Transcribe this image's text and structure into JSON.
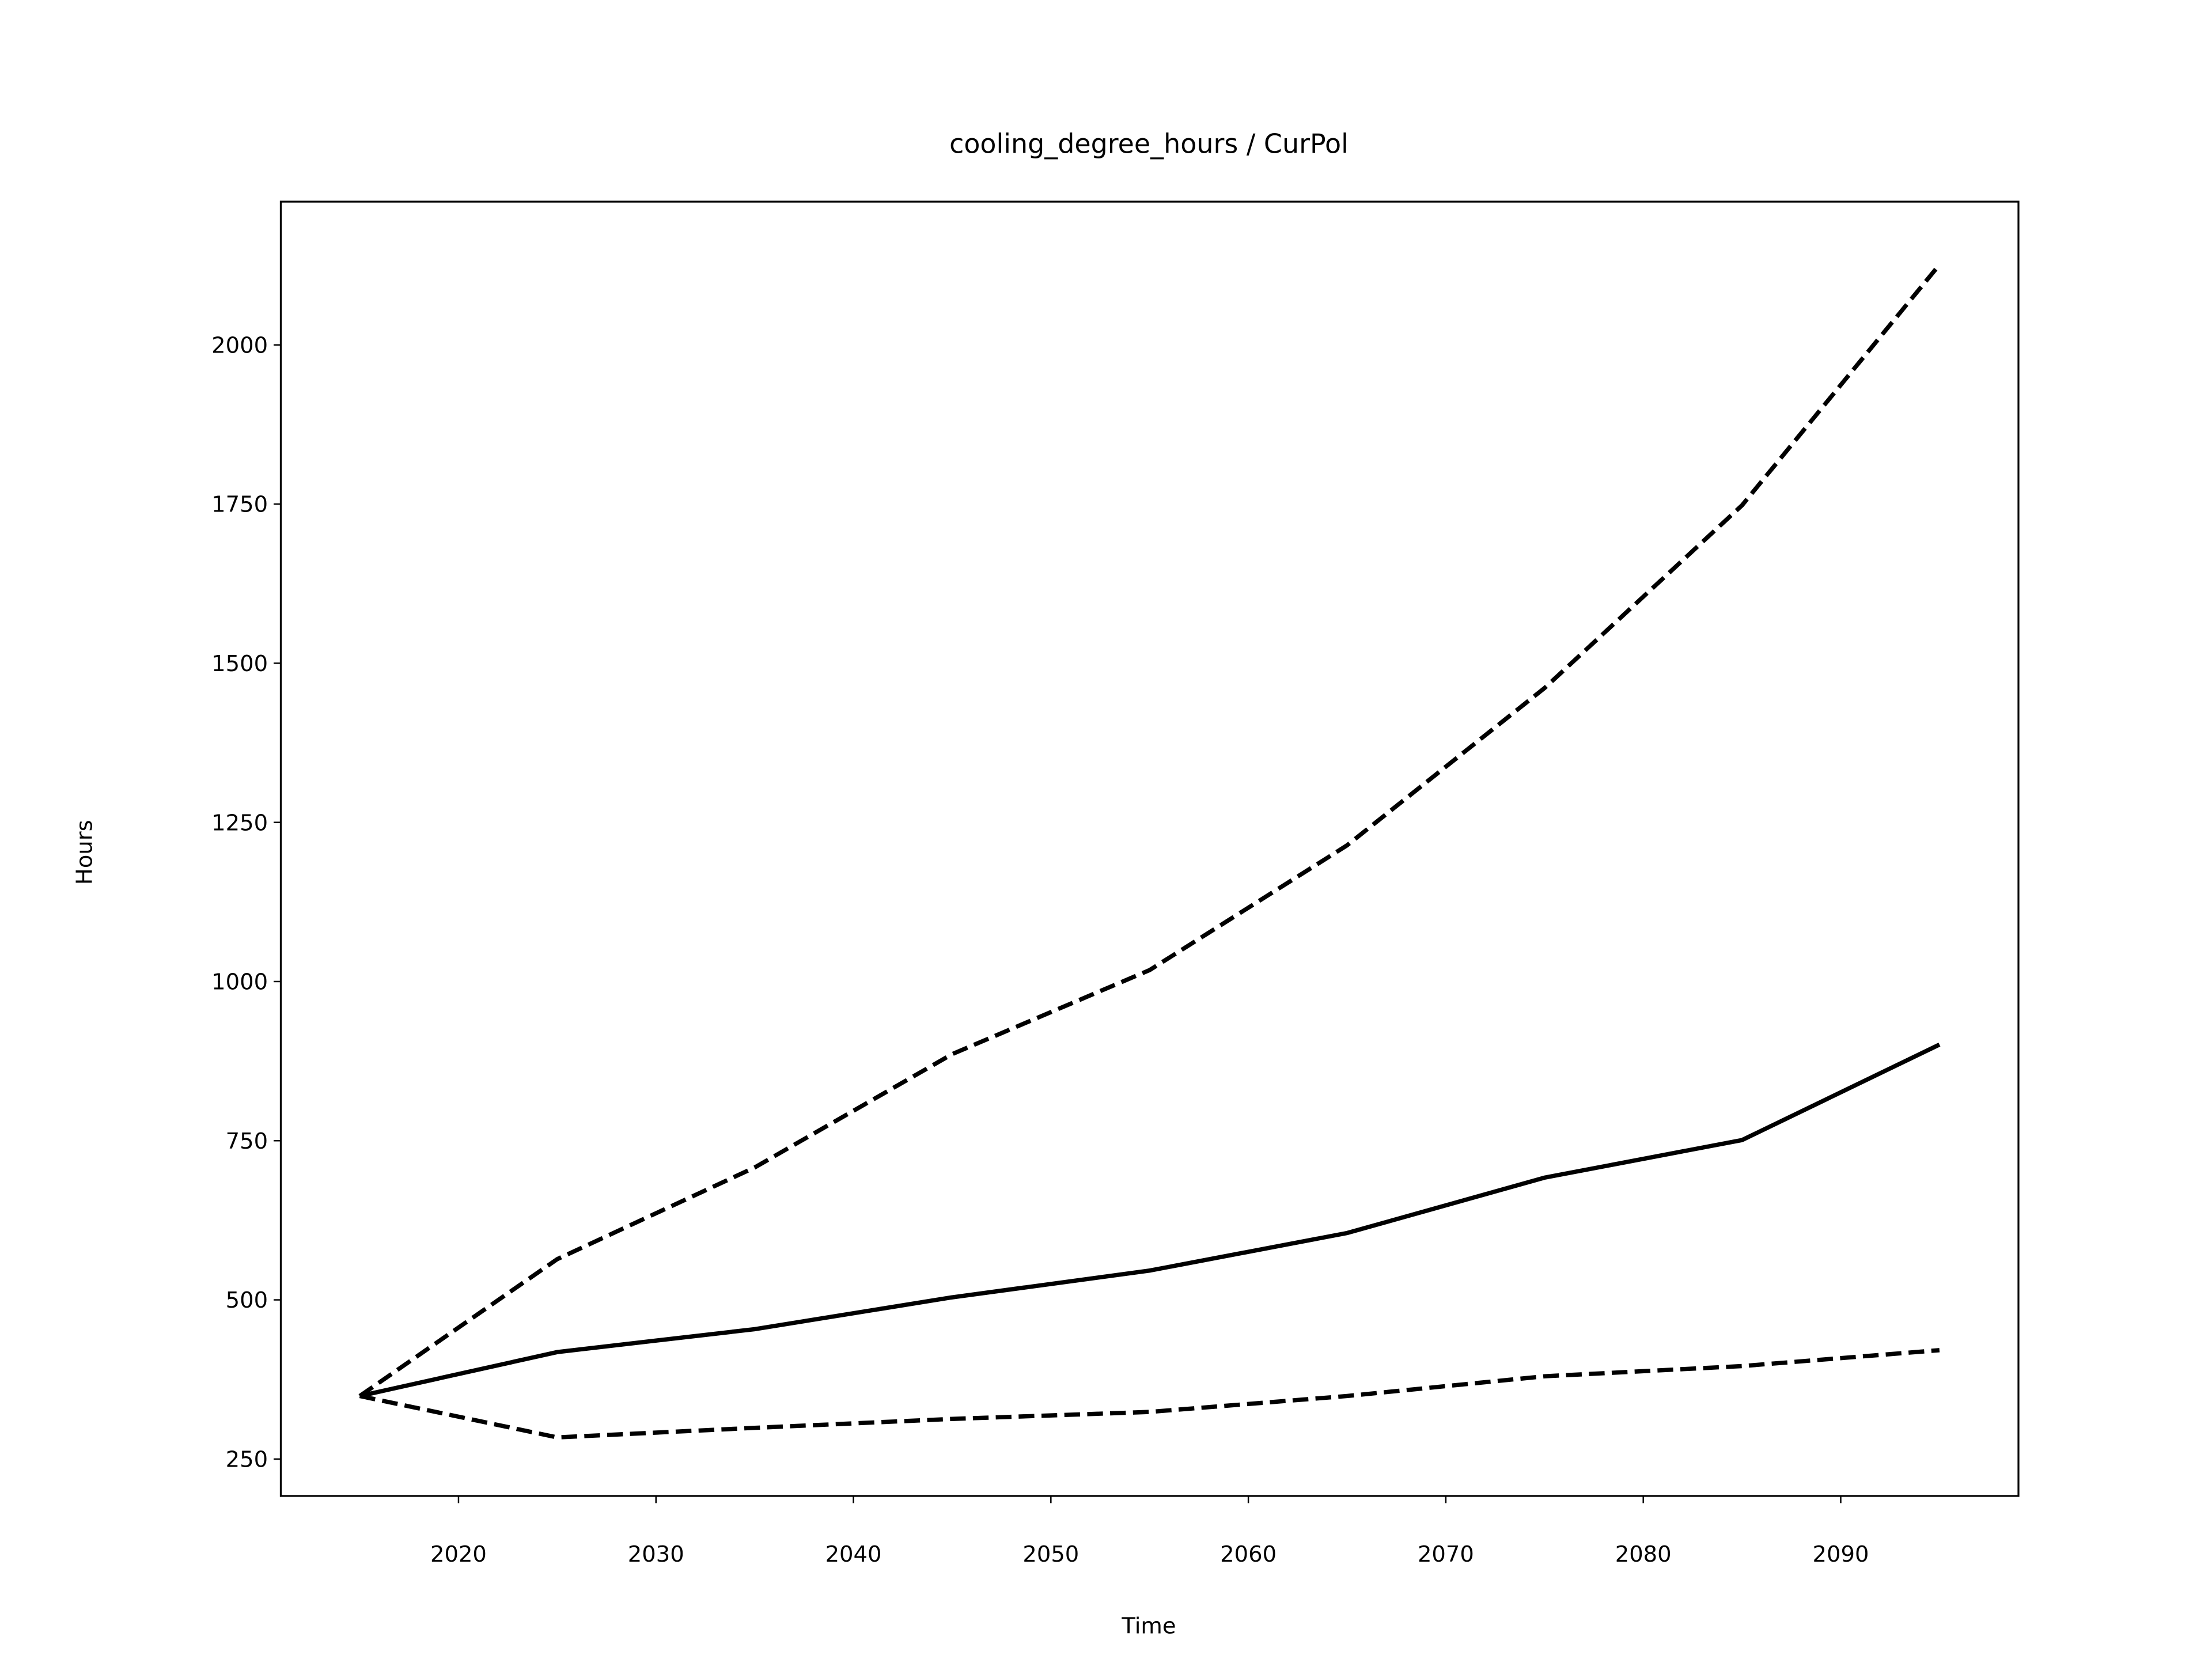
{
  "chart_data": {
    "type": "line",
    "title": "cooling_degree_hours / CurPol",
    "xlabel": "Time",
    "ylabel": "Hours",
    "x": [
      2015,
      2025,
      2035,
      2045,
      2055,
      2065,
      2075,
      2085,
      2095
    ],
    "series": [
      {
        "color": "#000000",
        "dash": "solid",
        "values": [
          349,
          418,
          454,
          504,
          546,
          605,
          692,
          751,
          901
        ]
      },
      {
        "color": "#000000",
        "dash": "dashed",
        "values": [
          349,
          564,
          708,
          886,
          1018,
          1214,
          1461,
          1748,
          2126
        ]
      },
      {
        "color": "#000000",
        "dash": "dashed",
        "values": [
          349,
          284,
          299,
          313,
          324,
          349,
          380,
          396,
          421
        ]
      }
    ],
    "xlim": [
      2011,
      2099
    ],
    "xticks": [
      2020,
      2030,
      2040,
      2050,
      2060,
      2070,
      2080,
      2090
    ],
    "ylim": [
      192,
      2225
    ],
    "yticks": [
      250,
      500,
      750,
      1000,
      1250,
      1500,
      1750,
      2000
    ],
    "grid": false
  }
}
